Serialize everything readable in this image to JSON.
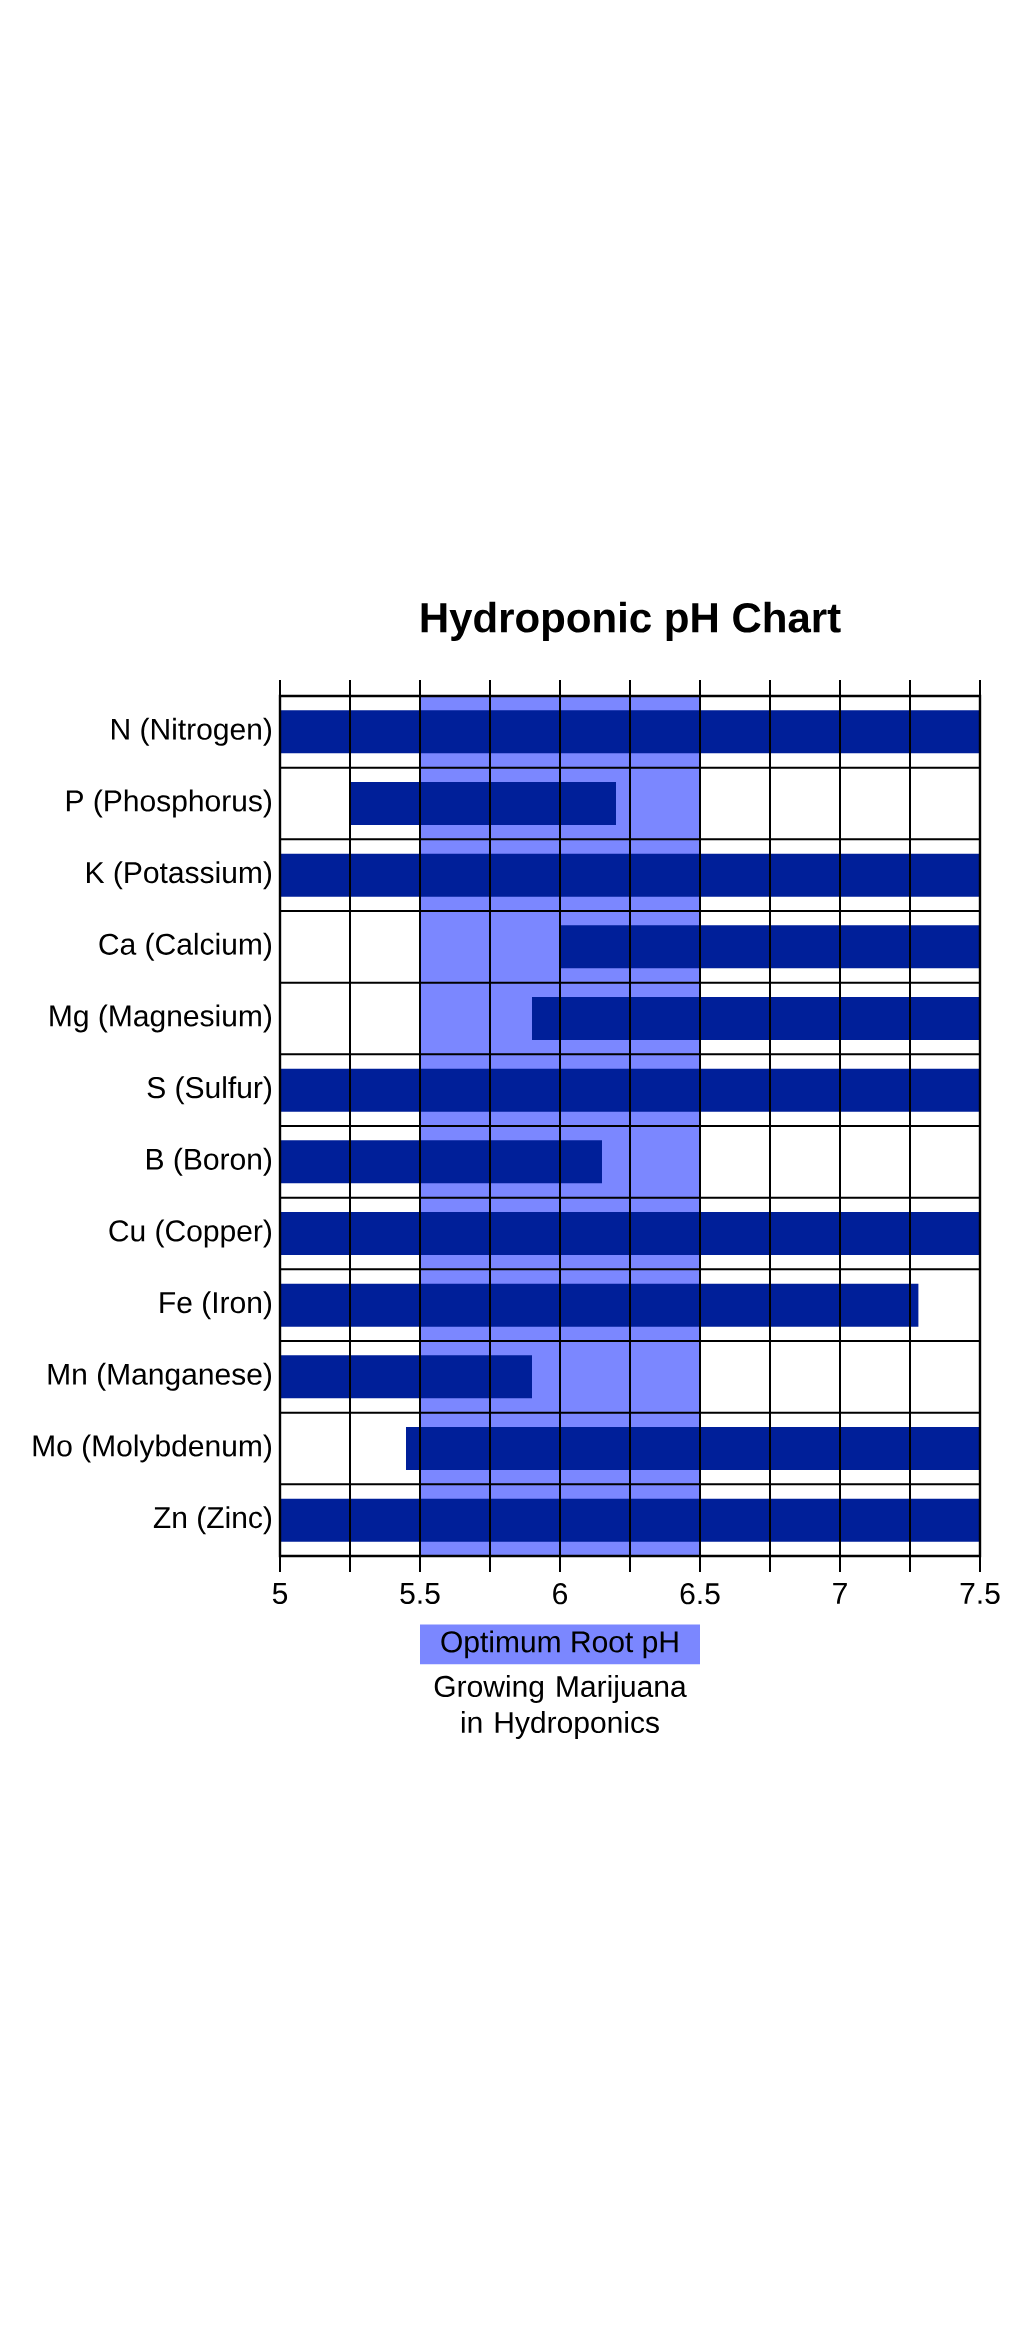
{
  "chart_data": {
    "type": "bar",
    "orientation": "horizontal",
    "title": "Hydroponic pH Chart",
    "categories": [
      "N (Nitrogen)",
      "P (Phosphorus)",
      "K (Potassium)",
      "Ca (Calcium)",
      "Mg (Magnesium)",
      "S (Sulfur)",
      "B (Boron)",
      "Cu (Copper)",
      "Fe (Iron)",
      "Mn (Manganese)",
      "Mo (Molybdenum)",
      "Zn (Zinc)"
    ],
    "base": [
      5,
      5.25,
      5,
      6,
      5.9,
      5,
      5,
      5,
      5,
      5,
      5.45,
      5
    ],
    "values": [
      2.5,
      0.95,
      2.5,
      1.5,
      1.6,
      2.5,
      1.15,
      2.5,
      2.28,
      0.9,
      2.05,
      2.5
    ],
    "color": "#001f99",
    "xlim": [
      5,
      7.5
    ],
    "xticks": [
      5,
      {
        "value": 5.25,
        "label": null
      },
      5.5,
      {
        "value": 5.75,
        "label": null
      },
      6,
      {
        "value": 6.25,
        "label": null
      },
      6.5,
      {
        "value": 6.75,
        "label": null
      },
      7,
      {
        "value": 7.25,
        "label": null
      },
      7.5
    ],
    "grid": true,
    "bands": [
      {
        "axis": "x",
        "from": 5.5,
        "to": 6.5,
        "label": "Optimum Root pH",
        "color": "#7b87ff"
      }
    ],
    "annotations": [
      "Growing Marijuana in Hydroponics"
    ]
  }
}
